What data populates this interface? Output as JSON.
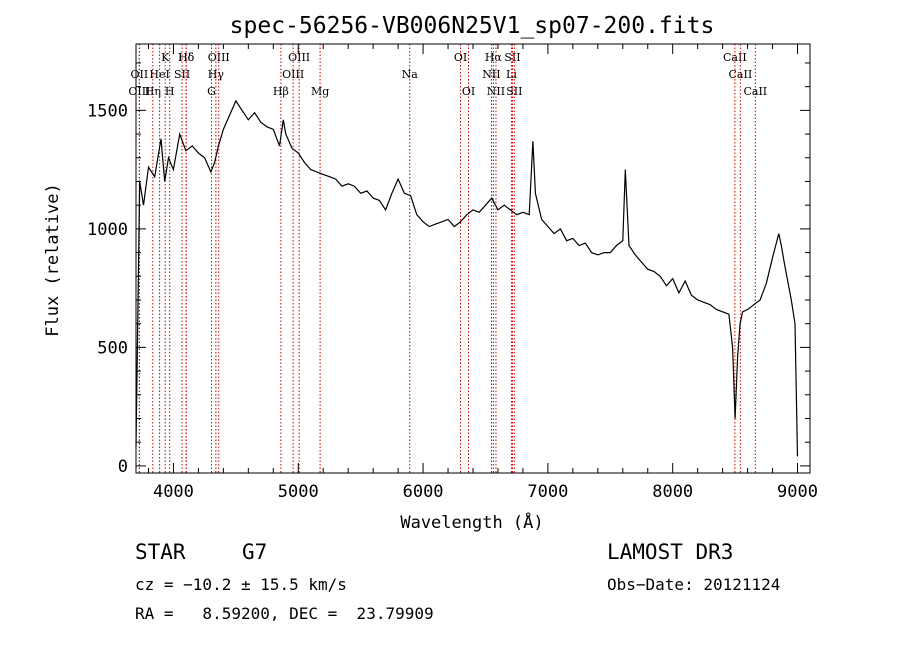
{
  "chart_data": {
    "type": "line",
    "title": "spec-56256-VB006N25V1_sp07-200.fits",
    "xlabel": "Wavelength (Å)",
    "ylabel": "Flux (relative)",
    "xlim": [
      3700,
      9100
    ],
    "ylim": [
      -30,
      1780
    ],
    "x_ticks": [
      4000,
      5000,
      6000,
      7000,
      8000,
      9000
    ],
    "y_ticks": [
      0,
      500,
      1000,
      1500
    ],
    "grid": false,
    "line_color": "#000000",
    "marker_color": "#cc0000",
    "series": [
      {
        "name": "flux",
        "x": [
          3700,
          3730,
          3760,
          3800,
          3850,
          3900,
          3930,
          3960,
          4000,
          4050,
          4100,
          4150,
          4200,
          4250,
          4300,
          4330,
          4360,
          4400,
          4450,
          4500,
          4550,
          4600,
          4650,
          4700,
          4750,
          4800,
          4850,
          4880,
          4900,
          4950,
          5000,
          5050,
          5100,
          5150,
          5200,
          5250,
          5300,
          5350,
          5400,
          5450,
          5500,
          5550,
          5600,
          5650,
          5700,
          5750,
          5800,
          5850,
          5900,
          5950,
          6000,
          6050,
          6100,
          6150,
          6200,
          6250,
          6300,
          6350,
          6400,
          6450,
          6500,
          6550,
          6600,
          6650,
          6700,
          6750,
          6800,
          6850,
          6880,
          6900,
          6950,
          7000,
          7050,
          7100,
          7150,
          7200,
          7250,
          7300,
          7350,
          7400,
          7450,
          7500,
          7550,
          7600,
          7620,
          7650,
          7700,
          7750,
          7800,
          7850,
          7900,
          7950,
          8000,
          8050,
          8100,
          8150,
          8200,
          8250,
          8300,
          8350,
          8400,
          8450,
          8480,
          8500,
          8520,
          8540,
          8560,
          8600,
          8650,
          8700,
          8750,
          8800,
          8850,
          8870,
          8900,
          8950,
          8980,
          9000
        ],
        "y": [
          80,
          1200,
          1100,
          1260,
          1220,
          1380,
          1200,
          1300,
          1250,
          1400,
          1330,
          1350,
          1320,
          1300,
          1240,
          1280,
          1350,
          1420,
          1480,
          1540,
          1500,
          1460,
          1490,
          1450,
          1430,
          1420,
          1350,
          1460,
          1400,
          1340,
          1320,
          1280,
          1250,
          1240,
          1230,
          1220,
          1210,
          1180,
          1190,
          1180,
          1150,
          1160,
          1130,
          1120,
          1080,
          1150,
          1210,
          1150,
          1140,
          1060,
          1030,
          1010,
          1020,
          1030,
          1040,
          1010,
          1030,
          1060,
          1080,
          1070,
          1100,
          1130,
          1080,
          1100,
          1080,
          1060,
          1070,
          1060,
          1370,
          1150,
          1040,
          1010,
          980,
          1000,
          950,
          960,
          930,
          940,
          900,
          890,
          900,
          900,
          930,
          950,
          1250,
          930,
          890,
          860,
          830,
          820,
          800,
          760,
          790,
          730,
          780,
          720,
          700,
          690,
          680,
          660,
          650,
          640,
          500,
          200,
          460,
          600,
          650,
          660,
          680,
          700,
          770,
          880,
          980,
          930,
          840,
          700,
          600,
          40
        ]
      }
    ],
    "lines_top": [
      {
        "label": "Hδ",
        "x": 4102
      },
      {
        "label": "K",
        "x": 3934
      },
      {
        "label": "Hδ",
        "x": 4102
      },
      {
        "label": "OIII",
        "x": 4363
      },
      {
        "label": "OIII",
        "x": 5007
      },
      {
        "label": "OI",
        "x": 6300
      },
      {
        "label": "Hα",
        "x": 6563
      },
      {
        "label": "SII",
        "x": 6716
      },
      {
        "label": "CaII",
        "x": 8498
      }
    ],
    "lines_mid": [
      {
        "label": "OII",
        "x": 3727
      },
      {
        "label": "HeI",
        "x": 3889
      },
      {
        "label": "SII",
        "x": 4069
      },
      {
        "label": "Hγ",
        "x": 4340
      },
      {
        "label": "OIII",
        "x": 4959
      },
      {
        "label": "Na",
        "x": 5893
      },
      {
        "label": "NII",
        "x": 6548
      },
      {
        "label": "Li",
        "x": 6708
      },
      {
        "label": "CaII",
        "x": 8542
      }
    ],
    "lines_low": [
      {
        "label": "OIII",
        "x": 3727
      },
      {
        "label": "Hη",
        "x": 3835
      },
      {
        "label": "H",
        "x": 3970
      },
      {
        "label": "G",
        "x": 4305
      },
      {
        "label": "Hβ",
        "x": 4861
      },
      {
        "label": "Mg",
        "x": 5175
      },
      {
        "label": "OI",
        "x": 6364
      },
      {
        "label": "NII",
        "x": 6584
      },
      {
        "label": "SII",
        "x": 6731
      },
      {
        "label": "CaII",
        "x": 8662
      }
    ]
  },
  "info": {
    "class_label": "STAR",
    "subclass": "G7",
    "survey": "LAMOST DR3",
    "cz": "cz = −10.2 ± 15.5 km/s",
    "obs_date": "Obs−Date: 20121124",
    "coords": "RA =   8.59200, DEC =  23.79909"
  }
}
